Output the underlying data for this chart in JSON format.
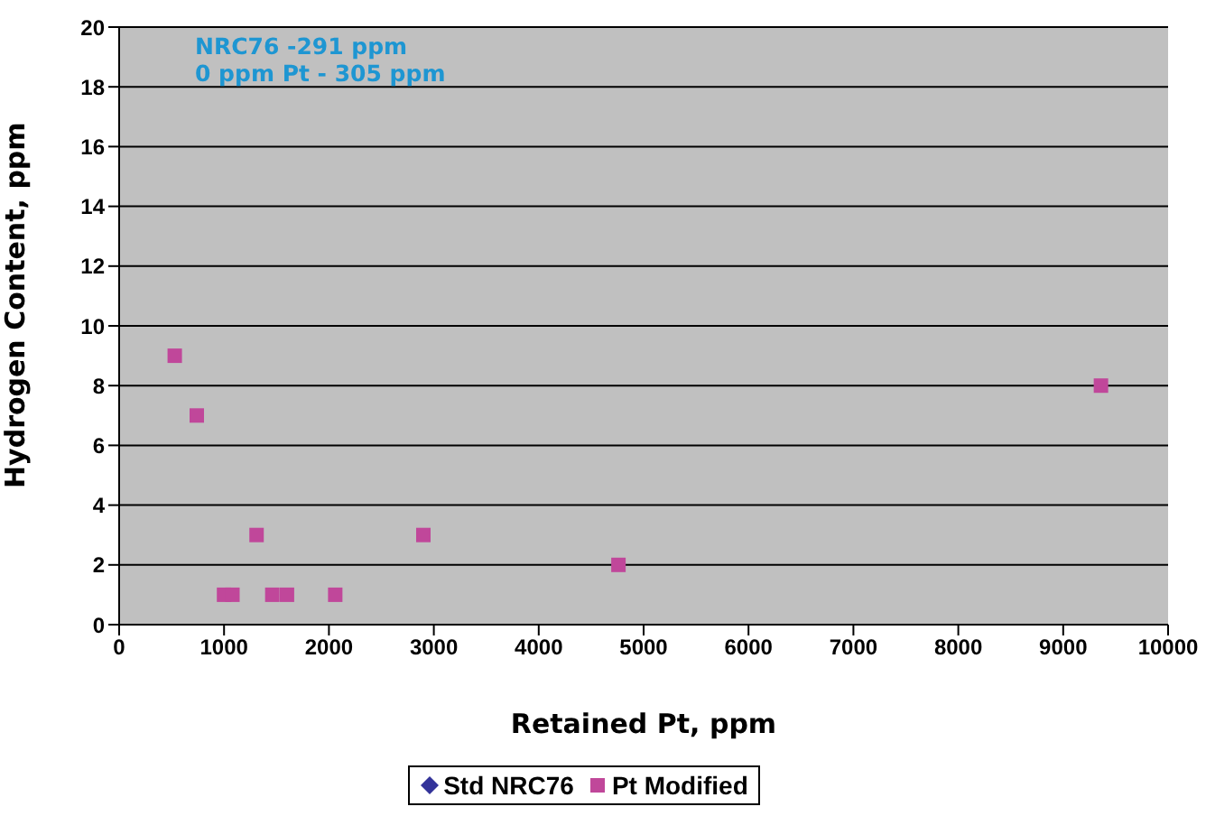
{
  "chart_data": {
    "type": "scatter",
    "xlabel": "Retained Pt, ppm",
    "ylabel": "Hydrogen Content, ppm",
    "annotations": [
      "NRC76 -291 ppm",
      "0 ppm Pt - 305 ppm"
    ],
    "xlim": [
      0,
      10000
    ],
    "xticks": [
      0,
      1000,
      2000,
      3000,
      4000,
      5000,
      6000,
      7000,
      8000,
      9000,
      10000
    ],
    "ylim": [
      0,
      20
    ],
    "yticks": [
      0,
      2,
      4,
      6,
      8,
      10,
      12,
      14,
      16,
      18,
      20
    ],
    "grid": "y",
    "legend": "bottom",
    "series": [
      {
        "name": "Std NRC76",
        "color": "#333399",
        "marker": "diamond"
      },
      {
        "name": "Pt Modified",
        "color": "#c0479a",
        "marker": "square",
        "x": [
          530,
          740,
          1000,
          1080,
          1310,
          1460,
          1600,
          2060,
          2900,
          4760,
          9360
        ],
        "values": [
          9,
          7,
          1,
          1,
          3,
          1,
          1,
          1,
          3,
          2,
          8
        ]
      }
    ]
  }
}
